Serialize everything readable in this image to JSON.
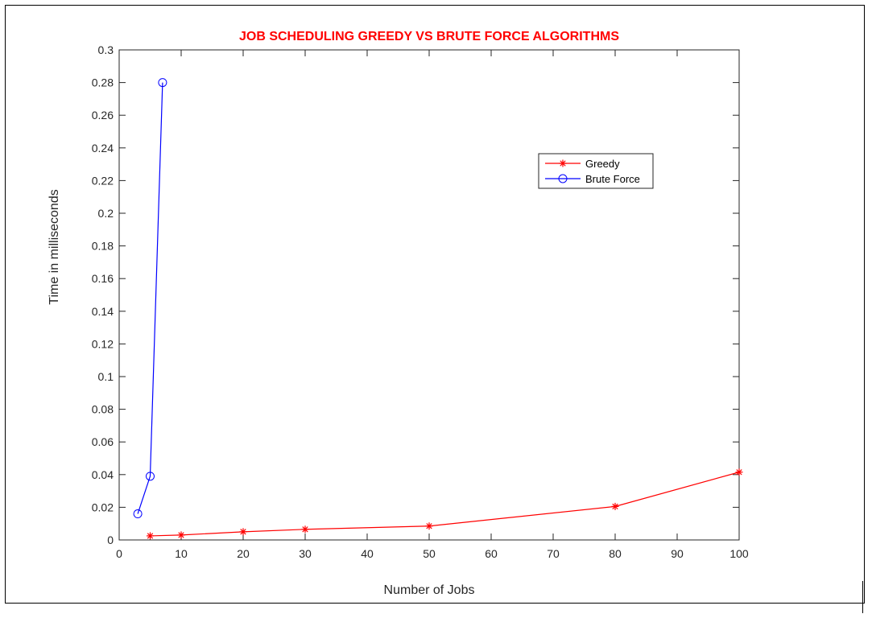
{
  "chart_data": {
    "type": "line",
    "title": "JOB SCHEDULING GREEDY VS BRUTE FORCE ALGORITHMS",
    "xlabel": "Number of Jobs",
    "ylabel": "Time in milliseconds",
    "xlim": [
      0,
      100
    ],
    "ylim": [
      0,
      0.3
    ],
    "xticks": [
      "0",
      "10",
      "20",
      "30",
      "40",
      "50",
      "60",
      "70",
      "80",
      "90",
      "100"
    ],
    "yticks": [
      "0",
      "0.02",
      "0.04",
      "0.06",
      "0.08",
      "0.1",
      "0.12",
      "0.14",
      "0.16",
      "0.18",
      "0.2",
      "0.22",
      "0.24",
      "0.26",
      "0.28",
      "0.3"
    ],
    "grid": false,
    "legend_position": "top-right",
    "series": [
      {
        "name": "Greedy",
        "color": "#ff0000",
        "marker": "asterisk",
        "x": [
          5,
          10,
          20,
          30,
          50,
          80,
          100
        ],
        "y": [
          0.0025,
          0.003,
          0.005,
          0.0065,
          0.0085,
          0.0205,
          0.0415
        ]
      },
      {
        "name": "Brute Force",
        "color": "#0000ff",
        "marker": "circle",
        "x": [
          3,
          5,
          7
        ],
        "y": [
          0.016,
          0.039,
          0.28
        ]
      }
    ]
  }
}
